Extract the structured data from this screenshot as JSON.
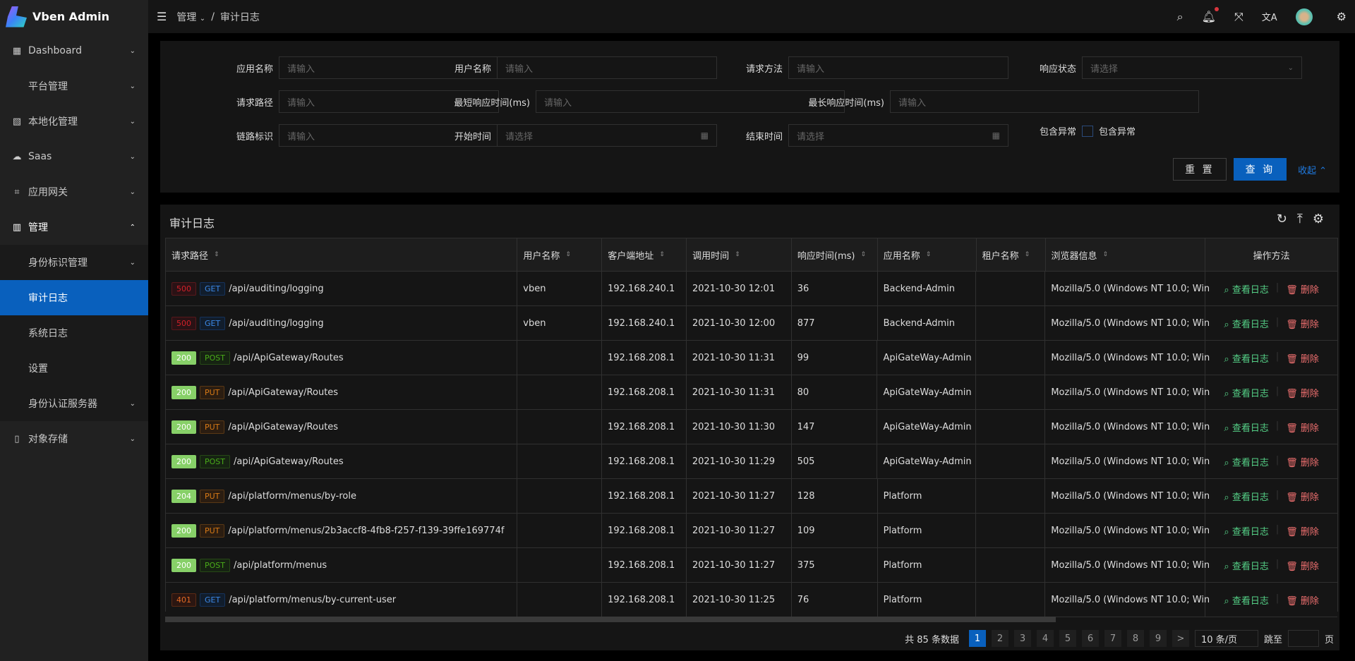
{
  "app": {
    "title": "Vben Admin"
  },
  "sidebar": {
    "items": [
      {
        "label": "Dashboard",
        "icon": "dashboard-icon",
        "glyph": "▦",
        "chev": "⌄"
      },
      {
        "label": "平台管理",
        "icon": "",
        "glyph": "",
        "chev": "⌄"
      },
      {
        "label": "本地化管理",
        "icon": "translate-doc-icon",
        "glyph": "▧",
        "chev": "⌄"
      },
      {
        "label": "Saas",
        "icon": "cloud-icon",
        "glyph": "☁",
        "chev": "⌄"
      },
      {
        "label": "应用网关",
        "icon": "gateway-icon",
        "glyph": "⌗",
        "chev": "⌄"
      },
      {
        "label": "管理",
        "icon": "chart-icon",
        "glyph": "▥",
        "chev": "⌃",
        "open": true
      },
      {
        "label": "身份标识管理",
        "sub": true,
        "chev": "⌄"
      },
      {
        "label": "审计日志",
        "sub": true,
        "active": true,
        "chev": ""
      },
      {
        "label": "系统日志",
        "sub": true,
        "chev": ""
      },
      {
        "label": "设置",
        "sub": true,
        "chev": ""
      },
      {
        "label": "身份认证服务器",
        "sub": true,
        "chev": "⌄"
      },
      {
        "label": "对象存储",
        "icon": "file-icon",
        "glyph": "▯",
        "chev": "⌄"
      }
    ]
  },
  "header": {
    "breadcrumb": [
      "管理",
      "审计日志"
    ],
    "separator": "/"
  },
  "search": {
    "fields": [
      {
        "label": "应用名称",
        "placeholder": "请输入"
      },
      {
        "label": "用户名称",
        "placeholder": "请输入"
      },
      {
        "label": "请求方法",
        "placeholder": "请输入"
      },
      {
        "label": "响应状态",
        "placeholder": "请选择"
      },
      {
        "label": "请求路径",
        "placeholder": "请输入"
      },
      {
        "label": "最短响应时间(ms)",
        "placeholder": "请输入"
      },
      {
        "label": "最长响应时间(ms)",
        "placeholder": "请输入"
      },
      {
        "label": "链路标识",
        "placeholder": "请输入"
      },
      {
        "label": "开始时间",
        "placeholder": "请选择"
      },
      {
        "label": "结束时间",
        "placeholder": "请选择"
      },
      {
        "label": "包含异常",
        "checkbox_label": "包含异常",
        "checked": false
      }
    ],
    "reset": "重 置",
    "query": "查 询",
    "collapse": "收起"
  },
  "table": {
    "title": "审计日志",
    "columns": [
      "请求路径",
      "用户名称",
      "客户端地址",
      "调用时间",
      "响应时间(ms)",
      "应用名称",
      "租户名称",
      "浏览器信息",
      "操作方法"
    ],
    "actions": {
      "view": "查看日志",
      "delete": "删除"
    },
    "colors": {
      "success": "#55d187",
      "danger": "#ed6f6f",
      "primary": "#0960bd"
    },
    "rows": [
      {
        "status": "500",
        "method": "GET",
        "path": "/api/auditing/logging",
        "user": "vben",
        "ip": "192.168.240.1",
        "time": "2021-10-30 12:01",
        "duration": "36",
        "app": "Backend-Admin",
        "tenant": "",
        "browser": "Mozilla/5.0 (Windows NT 10.0; Win"
      },
      {
        "status": "500",
        "method": "GET",
        "path": "/api/auditing/logging",
        "user": "vben",
        "ip": "192.168.240.1",
        "time": "2021-10-30 12:00",
        "duration": "877",
        "app": "Backend-Admin",
        "tenant": "",
        "browser": "Mozilla/5.0 (Windows NT 10.0; Win"
      },
      {
        "status": "200",
        "method": "POST",
        "path": "/api/ApiGateway/Routes",
        "user": "",
        "ip": "192.168.208.1",
        "time": "2021-10-30 11:31",
        "duration": "99",
        "app": "ApiGateWay-Admin",
        "tenant": "",
        "browser": "Mozilla/5.0 (Windows NT 10.0; Win"
      },
      {
        "status": "200",
        "method": "PUT",
        "path": "/api/ApiGateway/Routes",
        "user": "",
        "ip": "192.168.208.1",
        "time": "2021-10-30 11:31",
        "duration": "80",
        "app": "ApiGateWay-Admin",
        "tenant": "",
        "browser": "Mozilla/5.0 (Windows NT 10.0; Win"
      },
      {
        "status": "200",
        "method": "PUT",
        "path": "/api/ApiGateway/Routes",
        "user": "",
        "ip": "192.168.208.1",
        "time": "2021-10-30 11:30",
        "duration": "147",
        "app": "ApiGateWay-Admin",
        "tenant": "",
        "browser": "Mozilla/5.0 (Windows NT 10.0; Win"
      },
      {
        "status": "200",
        "method": "POST",
        "path": "/api/ApiGateway/Routes",
        "user": "",
        "ip": "192.168.208.1",
        "time": "2021-10-30 11:29",
        "duration": "505",
        "app": "ApiGateWay-Admin",
        "tenant": "",
        "browser": "Mozilla/5.0 (Windows NT 10.0; Win"
      },
      {
        "status": "204",
        "method": "PUT",
        "path": "/api/platform/menus/by-role",
        "user": "",
        "ip": "192.168.208.1",
        "time": "2021-10-30 11:27",
        "duration": "128",
        "app": "Platform",
        "tenant": "",
        "browser": "Mozilla/5.0 (Windows NT 10.0; Win"
      },
      {
        "status": "200",
        "method": "PUT",
        "path": "/api/platform/menus/2b3accf8-4fb8-f257-f139-39ffe169774f",
        "user": "",
        "ip": "192.168.208.1",
        "time": "2021-10-30 11:27",
        "duration": "109",
        "app": "Platform",
        "tenant": "",
        "browser": "Mozilla/5.0 (Windows NT 10.0; Win"
      },
      {
        "status": "200",
        "method": "POST",
        "path": "/api/platform/menus",
        "user": "",
        "ip": "192.168.208.1",
        "time": "2021-10-30 11:27",
        "duration": "375",
        "app": "Platform",
        "tenant": "",
        "browser": "Mozilla/5.0 (Windows NT 10.0; Win"
      },
      {
        "status": "401",
        "method": "GET",
        "path": "/api/platform/menus/by-current-user",
        "user": "",
        "ip": "192.168.208.1",
        "time": "2021-10-30 11:25",
        "duration": "76",
        "app": "Platform",
        "tenant": "",
        "browser": "Mozilla/5.0 (Windows NT 10.0; Win"
      }
    ]
  },
  "pagination": {
    "total_text": "共 85 条数据",
    "pages": [
      "1",
      "2",
      "3",
      "4",
      "5",
      "6",
      "7",
      "8",
      "9"
    ],
    "current": "1",
    "next": ">",
    "page_size": "10 条/页",
    "jump_label": "跳至",
    "jump_suffix": "页"
  }
}
